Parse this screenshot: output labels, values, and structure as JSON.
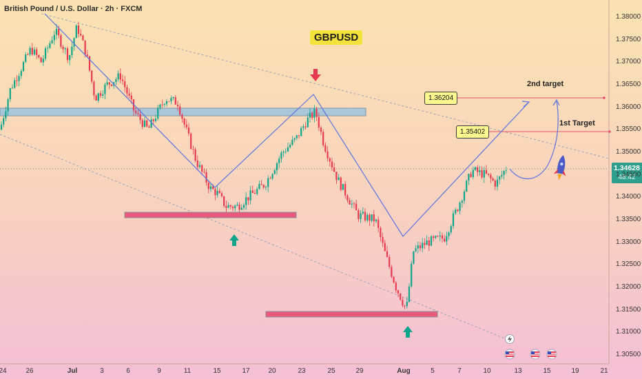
{
  "title": "British Pound / U.S. Dollar · 2h · FXCM",
  "ticker_badge": "GBPUSD",
  "targets": {
    "first_value": "1.35402",
    "first_label": "1st Target",
    "second_value": "1.36204",
    "second_label": "2nd target"
  },
  "last_price": {
    "value": "1.34628",
    "countdown": "48:42"
  },
  "colors": {
    "bull": "#0ea58a",
    "bear": "#e7394f",
    "support": "#e75a7c",
    "resistance": "#a9c7d8",
    "channel": "#9aa3b8",
    "zigzag": "#5b72e0",
    "target_line": "#e24f6b"
  },
  "icons": [
    "arrow-down-icon",
    "arrow-up-icon",
    "rocket-icon",
    "lightning-icon",
    "us-flag-icon"
  ],
  "chart_data": {
    "type": "candlestick",
    "ylim": [
      1.3035,
      1.381
    ],
    "y_ticks": [
      "1.38000",
      "1.37500",
      "1.37000",
      "1.36500",
      "1.36000",
      "1.35500",
      "1.35000",
      "1.34500",
      "1.34000",
      "1.33500",
      "1.33000",
      "1.32500",
      "1.32000",
      "1.31500",
      "1.31000",
      "1.30500"
    ],
    "x_ticks": [
      "24",
      "26",
      "Jul",
      "3",
      "6",
      "9",
      "11",
      "15",
      "17",
      "20",
      "23",
      "25",
      "29",
      "Aug",
      "5",
      "7",
      "10",
      "13",
      "15",
      "19",
      "21"
    ],
    "price_path": [
      [
        0,
        1.355
      ],
      [
        15,
        1.364
      ],
      [
        45,
        1.373
      ],
      [
        60,
        1.37
      ],
      [
        80,
        1.377
      ],
      [
        100,
        1.371
      ],
      [
        112,
        1.378
      ],
      [
        125,
        1.372
      ],
      [
        138,
        1.362
      ],
      [
        155,
        1.365
      ],
      [
        175,
        1.367
      ],
      [
        195,
        1.359
      ],
      [
        215,
        1.355
      ],
      [
        240,
        1.362
      ],
      [
        258,
        1.361
      ],
      [
        268,
        1.356
      ],
      [
        285,
        1.348
      ],
      [
        305,
        1.342
      ],
      [
        315,
        1.341
      ],
      [
        328,
        1.338
      ],
      [
        345,
        1.338
      ],
      [
        360,
        1.34
      ],
      [
        385,
        1.343
      ],
      [
        410,
        1.35
      ],
      [
        430,
        1.353
      ],
      [
        445,
        1.357
      ],
      [
        458,
        1.359
      ],
      [
        470,
        1.352
      ],
      [
        490,
        1.344
      ],
      [
        520,
        1.336
      ],
      [
        545,
        1.335
      ],
      [
        558,
        1.328
      ],
      [
        575,
        1.32
      ],
      [
        590,
        1.315
      ],
      [
        600,
        1.328
      ],
      [
        620,
        1.33
      ],
      [
        645,
        1.331
      ],
      [
        665,
        1.338
      ],
      [
        685,
        1.346
      ],
      [
        705,
        1.345
      ],
      [
        720,
        1.343
      ],
      [
        735,
        1.3465
      ]
    ],
    "support_zones": [
      1.336,
      1.315
    ],
    "resistance_zone": 1.359,
    "targets": [
      1.35402,
      1.36204
    ],
    "last_price": 1.34628
  }
}
